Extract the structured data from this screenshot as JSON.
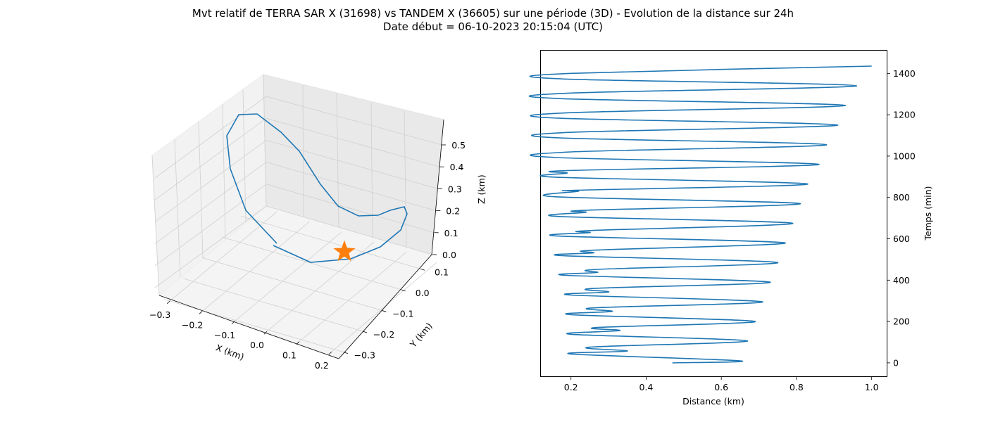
{
  "title_line1": "Mvt relatif de TERRA SAR X (31698) vs TANDEM X (36605) sur une période (3D) - Evolution de la distance sur 24h",
  "title_line2": "Date début = 06-10-2023 20:15:04 (UTC)",
  "colors": {
    "series": "#1f77b4",
    "marker": "#ff7f0e",
    "pane": "#f2f2f2",
    "grid": "#d0d0d0"
  },
  "chart_data": [
    {
      "type": "line3d",
      "xlabel": "X (km)",
      "ylabel": "Y (km)",
      "zlabel": "Z (km)",
      "x_ticks": [
        "−0.3",
        "−0.2",
        "−0.1",
        "0.0",
        "0.1",
        "0.2"
      ],
      "y_ticks": [
        "−0.3",
        "−0.2",
        "−0.1",
        "0.0",
        "0.1"
      ],
      "z_ticks": [
        "0.0",
        "0.1",
        "0.2",
        "0.3",
        "0.4",
        "0.5"
      ],
      "xlim": [
        -0.3,
        0.2
      ],
      "ylim": [
        -0.35,
        0.1
      ],
      "zlim": [
        0.0,
        0.55
      ],
      "grid": true,
      "marker": {
        "shape": "star",
        "color": "#ff7f0e"
      }
    },
    {
      "type": "line",
      "xlabel": "Distance (km)",
      "ylabel": "Temps (min)",
      "x_ticks": [
        "0.2",
        "0.4",
        "0.6",
        "0.8",
        "1.0"
      ],
      "y_ticks": [
        "0",
        "200",
        "400",
        "600",
        "800",
        "1000",
        "1200",
        "1400"
      ],
      "xlim": [
        0.12,
        1.04
      ],
      "ylim": [
        -65,
        1510
      ],
      "y_axis_side": "right",
      "grid": false,
      "period_min": 95,
      "points": [
        [
          0.47,
          0
        ],
        [
          0.65,
          10
        ],
        [
          0.2,
          43
        ],
        [
          0.35,
          57
        ],
        [
          0.25,
          76
        ],
        [
          0.67,
          106
        ],
        [
          0.2,
          138
        ],
        [
          0.33,
          156
        ],
        [
          0.27,
          171
        ],
        [
          0.69,
          200
        ],
        [
          0.2,
          233
        ],
        [
          0.31,
          249
        ],
        [
          0.26,
          266
        ],
        [
          0.71,
          295
        ],
        [
          0.2,
          328
        ],
        [
          0.3,
          343
        ],
        [
          0.26,
          360
        ],
        [
          0.73,
          390
        ],
        [
          0.19,
          423
        ],
        [
          0.27,
          437
        ],
        [
          0.27,
          452
        ],
        [
          0.75,
          485
        ],
        [
          0.18,
          518
        ],
        [
          0.26,
          532
        ],
        [
          0.26,
          545
        ],
        [
          0.77,
          580
        ],
        [
          0.17,
          613
        ],
        [
          0.25,
          630
        ],
        [
          0.25,
          640
        ],
        [
          0.79,
          675
        ],
        [
          0.17,
          708
        ],
        [
          0.24,
          728
        ],
        [
          0.24,
          738
        ],
        [
          0.81,
          770
        ],
        [
          0.16,
          803
        ],
        [
          0.22,
          830
        ],
        [
          0.22,
          835
        ],
        [
          0.83,
          865
        ],
        [
          0.16,
          898
        ],
        [
          0.19,
          918
        ],
        [
          0.19,
          930
        ],
        [
          0.86,
          960
        ],
        [
          0.16,
          993
        ],
        [
          0.2,
          1020
        ],
        [
          0.88,
          1055
        ],
        [
          0.17,
          1088
        ],
        [
          0.2,
          1115
        ],
        [
          0.91,
          1150
        ],
        [
          0.17,
          1183
        ],
        [
          0.2,
          1210
        ],
        [
          0.93,
          1245
        ],
        [
          0.17,
          1278
        ],
        [
          0.2,
          1305
        ],
        [
          0.96,
          1340
        ],
        [
          0.18,
          1373
        ],
        [
          0.2,
          1400
        ],
        [
          1.0,
          1435
        ]
      ]
    }
  ]
}
